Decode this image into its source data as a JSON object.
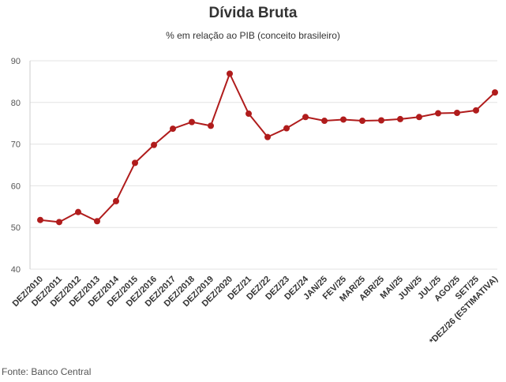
{
  "chart_data": {
    "type": "line",
    "title": "Dívida Bruta",
    "subtitle": "% em relação ao PIB (conceito brasileiro)",
    "xlabel": "",
    "ylabel": "",
    "ylim": [
      40,
      90
    ],
    "yticks": [
      40,
      50,
      60,
      70,
      80,
      90
    ],
    "grid": true,
    "legend": "none",
    "color": "#b01c1c",
    "categories": [
      "DEZ/2010",
      "DEZ/2011",
      "DEZ/2012",
      "DEZ/2013",
      "DEZ/2014",
      "DEZ/2015",
      "DEZ/2016",
      "DEZ/2017",
      "DEZ/2018",
      "DEZ/2019",
      "DEZ/2020",
      "DEZ/21",
      "DEZ/22",
      "DEZ/23",
      "DEZ/24",
      "JAN/25",
      "FEV/25",
      "MAR/25",
      "ABR/25",
      "MAI/25",
      "JUN/25",
      "JUL/25",
      "AGO/25",
      "SET/25",
      "*DEZ/26 (ESTIMATIVA)"
    ],
    "series": [
      {
        "name": "Dívida Bruta",
        "values": [
          51.8,
          51.3,
          53.7,
          51.5,
          56.3,
          65.5,
          69.8,
          73.7,
          75.3,
          74.4,
          86.9,
          77.3,
          71.7,
          73.8,
          76.5,
          75.6,
          75.9,
          75.6,
          75.7,
          76.0,
          76.5,
          77.4,
          77.5,
          78.1,
          82.4
        ]
      }
    ]
  },
  "source": "Fonte: Banco Central"
}
